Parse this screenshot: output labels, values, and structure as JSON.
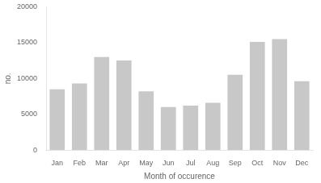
{
  "chart_data": {
    "type": "bar",
    "categories": [
      "Jan",
      "Feb",
      "Mar",
      "Apr",
      "May",
      "Jun",
      "Jul",
      "Aug",
      "Sep",
      "Oct",
      "Nov",
      "Dec"
    ],
    "values": [
      8500,
      9300,
      13000,
      12500,
      8200,
      6000,
      6200,
      6600,
      10500,
      15100,
      15500,
      9600
    ],
    "color": "#c8c8c8",
    "xlabel": "Month of occurence",
    "ylabel": "no.",
    "ylim": [
      0,
      20000
    ],
    "yticks": [
      0,
      5000,
      10000,
      15000,
      20000
    ],
    "grid": false
  }
}
